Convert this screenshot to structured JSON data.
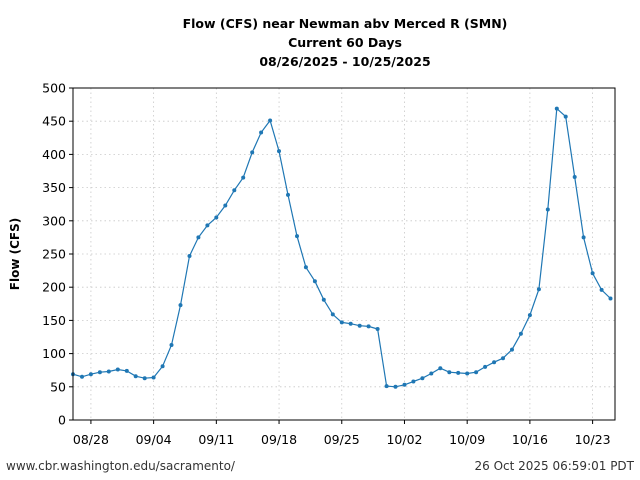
{
  "chart_data": {
    "type": "line",
    "title_lines": [
      "Flow (CFS) near Newman abv Merced R (SMN)",
      "Current 60 Days",
      "08/26/2025 - 10/25/2025"
    ],
    "xlabel": "",
    "ylabel": "Flow (CFS)",
    "ylim": [
      0,
      500
    ],
    "yticks": [
      0,
      50,
      100,
      150,
      200,
      250,
      300,
      350,
      400,
      450,
      500
    ],
    "x_start_date": "2025-08-26",
    "xlim_days": [
      0,
      60.5
    ],
    "xticks": [
      {
        "label": "08/28",
        "day": 2
      },
      {
        "label": "09/04",
        "day": 9
      },
      {
        "label": "09/11",
        "day": 16
      },
      {
        "label": "09/18",
        "day": 23
      },
      {
        "label": "09/25",
        "day": 30
      },
      {
        "label": "10/02",
        "day": 37
      },
      {
        "label": "10/09",
        "day": 44
      },
      {
        "label": "10/16",
        "day": 51
      },
      {
        "label": "10/23",
        "day": 58
      }
    ],
    "grid": true,
    "series": [
      {
        "color": "#1f77b4",
        "x_days": [
          0,
          1,
          2,
          3,
          4,
          5,
          6,
          7,
          8,
          9,
          10,
          11,
          12,
          13,
          14,
          15,
          16,
          17,
          18,
          19,
          20,
          21,
          22,
          23,
          24,
          25,
          26,
          27,
          28,
          29,
          30,
          31,
          32,
          33,
          34,
          35,
          36,
          37,
          38,
          39,
          40,
          41,
          42,
          43,
          44,
          45,
          46,
          47,
          48,
          49,
          50,
          51,
          52,
          53,
          54,
          55,
          56,
          57,
          58,
          59,
          60
        ],
        "values": [
          69,
          65,
          69,
          72,
          73,
          76,
          74,
          66,
          63,
          64,
          81,
          113,
          173,
          247,
          275,
          293,
          305,
          323,
          346,
          365,
          403,
          433,
          451,
          405,
          339,
          277,
          230,
          209,
          181,
          159,
          147,
          145,
          142,
          141,
          137,
          51,
          50,
          53,
          58,
          63,
          70,
          78,
          72,
          71,
          70,
          72,
          80,
          87,
          93,
          106,
          130,
          158,
          197,
          317,
          469,
          457,
          366,
          275,
          221,
          196,
          183
        ]
      }
    ]
  },
  "footer": {
    "left": "www.cbr.washington.edu/sacramento/",
    "right": "26 Oct 2025 06:59:01 PDT"
  }
}
